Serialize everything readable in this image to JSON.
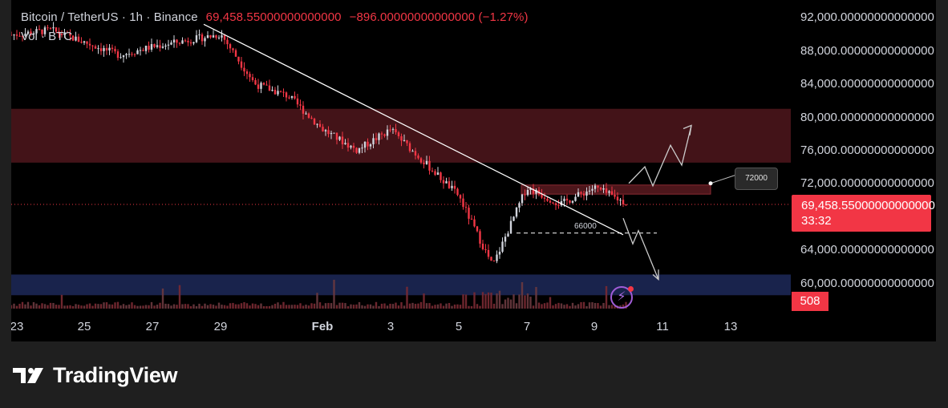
{
  "header": {
    "title": "Bitcoin / TetherUS · 1h · Binance",
    "price": "69,458.55000000000000",
    "change": "−896.00000000000000 (−1.27%)"
  },
  "volume_label": "Vol · BTC",
  "colors": {
    "down": "#f23645",
    "up": "#d1d4dc",
    "resistance_zone": "#5a1a20",
    "support_zone": "#1a2550",
    "background": "#000000"
  },
  "price_axis": {
    "ticks": [
      "92,000.00000000000000",
      "88,000.00000000000000",
      "84,000.00000000000000",
      "80,000.00000000000000",
      "76,000.00000000000000",
      "72,000.00000000000000",
      "64,000.00000000000000",
      "60,000.00000000000000"
    ]
  },
  "time_axis": {
    "ticks": [
      "23",
      "25",
      "27",
      "29",
      "Feb",
      "3",
      "5",
      "7",
      "9",
      "11",
      "13"
    ]
  },
  "last_price_tag": {
    "price": "69,458.55000000000000",
    "countdown": "33:32"
  },
  "volume_tag": "508",
  "annotations": {
    "target_callout": "72000",
    "support_level": "66000"
  },
  "chart_data": {
    "type": "candlestick",
    "title": "Bitcoin / TetherUS · 1h · Binance",
    "ylim": [
      57000,
      94000
    ],
    "yticks": [
      92000,
      88000,
      84000,
      80000,
      76000,
      72000,
      64000,
      60000
    ],
    "x_ticks": [
      "23",
      "25",
      "27",
      "29",
      "Feb",
      "3",
      "5",
      "7",
      "9",
      "11",
      "13"
    ],
    "last_price": 69458.55,
    "approx_close_path": [
      {
        "x": "22 Jan",
        "y": 89500
      },
      {
        "x": "24 Jan",
        "y": 90500
      },
      {
        "x": "26 Jan",
        "y": 87500
      },
      {
        "x": "27 Jan",
        "y": 88500
      },
      {
        "x": "29 Jan",
        "y": 90000
      },
      {
        "x": "30 Jan",
        "y": 84000
      },
      {
        "x": "31 Jan",
        "y": 82500
      },
      {
        "x": "1 Feb",
        "y": 78500
      },
      {
        "x": "2 Feb",
        "y": 76000
      },
      {
        "x": "3 Feb",
        "y": 78500
      },
      {
        "x": "4 Feb",
        "y": 74500
      },
      {
        "x": "5 Feb",
        "y": 70500
      },
      {
        "x": "6 Feb",
        "y": 62000
      },
      {
        "x": "7 Feb",
        "y": 71500
      },
      {
        "x": "8 Feb",
        "y": 69500
      },
      {
        "x": "9 Feb",
        "y": 71500
      },
      {
        "x": "10 Feb",
        "y": 69458
      }
    ],
    "zones": [
      {
        "name": "resistance",
        "from": 74500,
        "to": 81000
      },
      {
        "name": "support",
        "from": 58500,
        "to": 61000
      },
      {
        "name": "breakout",
        "from": 70700,
        "to": 71800
      }
    ],
    "levels": [
      72000,
      66000
    ]
  }
}
